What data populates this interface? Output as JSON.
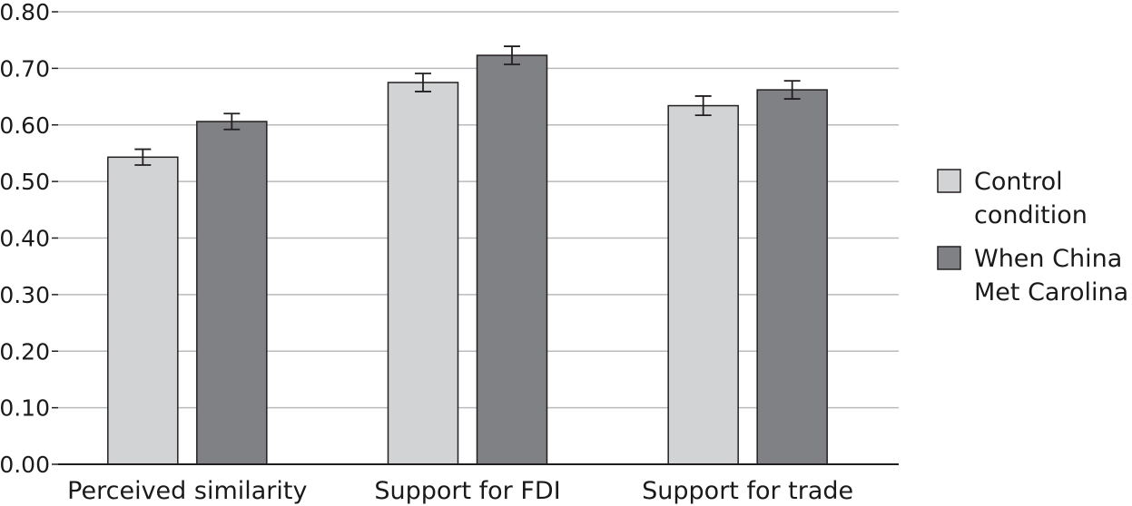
{
  "chart_data": {
    "type": "bar",
    "title": "",
    "xlabel": "",
    "ylabel": "",
    "categories": [
      "Perceived similarity",
      "Support for FDI",
      "Support for trade"
    ],
    "series": [
      {
        "name": "Control condition",
        "legend_lines": [
          "Control",
          "condition"
        ],
        "color": "#d2d3d5",
        "values": [
          0.543,
          0.675,
          0.634
        ],
        "error": [
          0.014,
          0.016,
          0.017
        ]
      },
      {
        "name": "When China Met Carolina",
        "legend_lines": [
          "When China",
          "Met Carolina"
        ],
        "color": "#808184",
        "values": [
          0.606,
          0.723,
          0.662
        ],
        "error": [
          0.014,
          0.016,
          0.016
        ]
      }
    ],
    "ylim": [
      0,
      0.8
    ],
    "yticks": [
      "0.00",
      "0.10",
      "0.20",
      "0.30",
      "0.40",
      "0.50",
      "0.60",
      "0.70",
      "0.80"
    ],
    "grid": true,
    "legend_position": "right"
  }
}
